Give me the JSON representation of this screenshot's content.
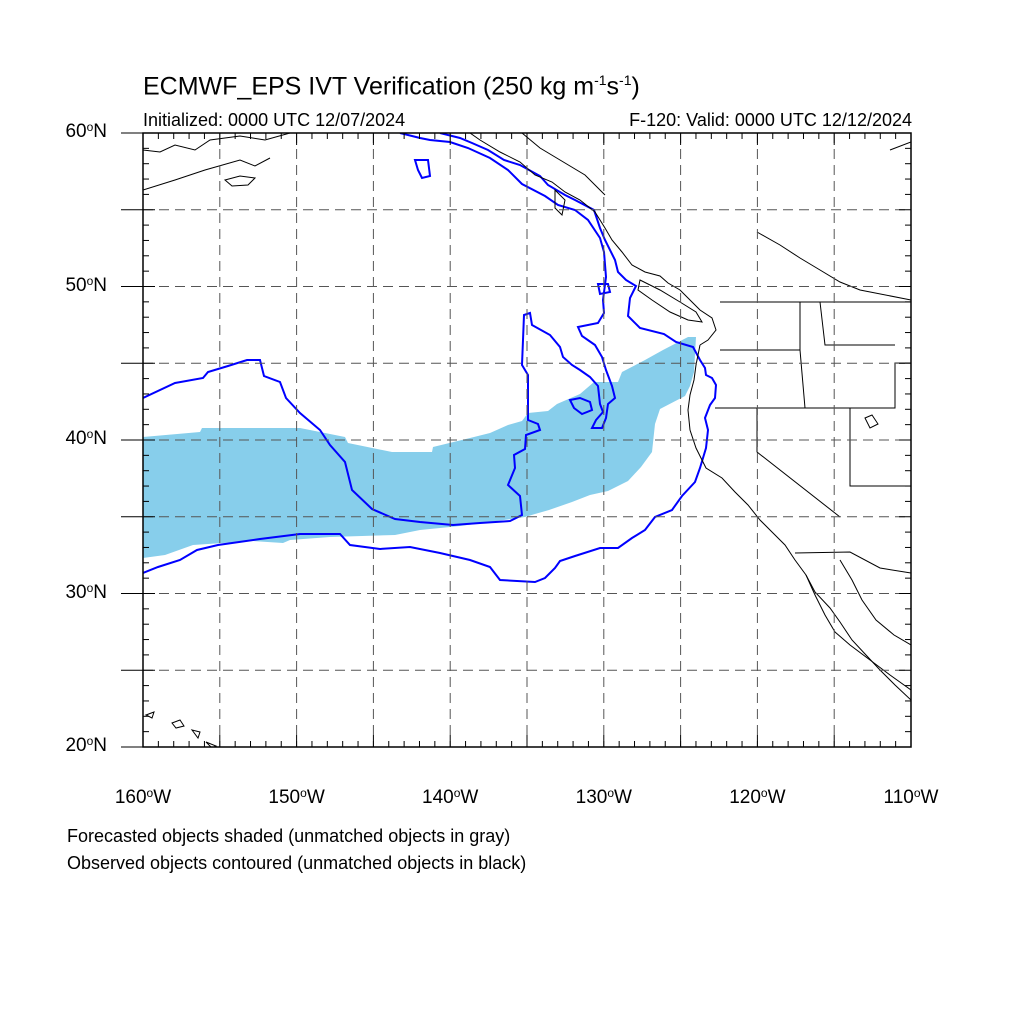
{
  "title": {
    "main": "ECMWF_EPS IVT Verification (250 kg m",
    "exp1": "-1",
    "mid": "s",
    "exp2": "-1",
    "end": ")"
  },
  "subtitle": {
    "initialized": "Initialized: 0000 UTC 12/07/2024",
    "valid": "F-120: Valid: 0000 UTC 12/12/2024"
  },
  "map": {
    "lon_range": [
      -160,
      -110
    ],
    "lat_range": [
      20,
      60
    ],
    "grid": true,
    "lat_labels": [
      {
        "lat": 60,
        "text": "60",
        "hemi": "N"
      },
      {
        "lat": 50,
        "text": "50",
        "hemi": "N"
      },
      {
        "lat": 40,
        "text": "40",
        "hemi": "N"
      },
      {
        "lat": 30,
        "text": "30",
        "hemi": "N"
      },
      {
        "lat": 20,
        "text": "20",
        "hemi": "N"
      }
    ],
    "lon_labels": [
      {
        "lon": -160,
        "text": "160",
        "hemi": "W"
      },
      {
        "lon": -150,
        "text": "150",
        "hemi": "W"
      },
      {
        "lon": -140,
        "text": "140",
        "hemi": "W"
      },
      {
        "lon": -130,
        "text": "130",
        "hemi": "W"
      },
      {
        "lon": -120,
        "text": "120",
        "hemi": "W"
      },
      {
        "lon": -110,
        "text": "110",
        "hemi": "W"
      }
    ],
    "colors": {
      "forecast_fill": "#87ceeb",
      "observed_contour": "#0000ff",
      "coastline": "#000000",
      "grid": "#555555"
    }
  },
  "captions": {
    "line1": "Forecasted objects shaded (unmatched objects in gray)",
    "line2": "Observed objects contoured (unmatched objects in black)"
  }
}
